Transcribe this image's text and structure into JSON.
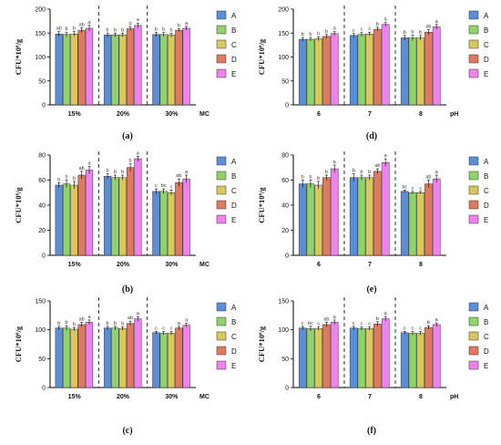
{
  "legend_colors": {
    "A": "#5b8ed8",
    "B": "#8fd46a",
    "C": "#d8c85e",
    "D": "#e07a5e",
    "E": "#ee82ee"
  },
  "chart_data": [
    {
      "type": "bar",
      "panel_label": "(a)",
      "ylabel": "CFU*10^6/g",
      "xlabel": "MC",
      "ylim": [
        0,
        200
      ],
      "yticks": [
        0,
        50,
        100,
        150,
        200
      ],
      "categories": [
        "15%",
        "20%",
        "30%"
      ],
      "series": [
        {
          "name": "A",
          "values": [
            148,
            146,
            147
          ],
          "errors": [
            5,
            4,
            4
          ],
          "sig": [
            "ab",
            "b",
            "b"
          ]
        },
        {
          "name": "B",
          "values": [
            147,
            146,
            147
          ],
          "errors": [
            5,
            4,
            4
          ],
          "sig": [
            "b",
            "b",
            "b"
          ]
        },
        {
          "name": "C",
          "values": [
            148,
            146,
            146
          ],
          "errors": [
            5,
            4,
            4
          ],
          "sig": [
            "b",
            "b",
            "b"
          ]
        },
        {
          "name": "D",
          "values": [
            156,
            159,
            156
          ],
          "errors": [
            5,
            4,
            3
          ],
          "sig": [
            "ab",
            "b",
            "b"
          ]
        },
        {
          "name": "E",
          "values": [
            160,
            166,
            160
          ],
          "errors": [
            6,
            5,
            4
          ],
          "sig": [
            "a",
            "a",
            "a"
          ]
        }
      ]
    },
    {
      "type": "bar",
      "panel_label": "(d)",
      "ylabel": "CFU*10^6/g",
      "xlabel": "pH",
      "ylim": [
        0,
        200
      ],
      "yticks": [
        0,
        50,
        100,
        150,
        200
      ],
      "categories": [
        "6",
        "7",
        "8"
      ],
      "series": [
        {
          "name": "A",
          "values": [
            137,
            145,
            140
          ],
          "errors": [
            4,
            4,
            5
          ],
          "sig": [
            "b",
            "c",
            "b"
          ]
        },
        {
          "name": "B",
          "values": [
            137,
            147,
            140
          ],
          "errors": [
            4,
            4,
            6
          ],
          "sig": [
            "b",
            "c",
            "b"
          ]
        },
        {
          "name": "C",
          "values": [
            138,
            148,
            140
          ],
          "errors": [
            4,
            4,
            5
          ],
          "sig": [
            "b",
            "c",
            "b"
          ]
        },
        {
          "name": "D",
          "values": [
            143,
            158,
            152
          ],
          "errors": [
            4,
            4,
            5
          ],
          "sig": [
            "b",
            "b",
            "ab"
          ]
        },
        {
          "name": "E",
          "values": [
            149,
            168,
            163
          ],
          "errors": [
            4,
            4,
            5
          ],
          "sig": [
            "a",
            "a",
            "a"
          ]
        }
      ]
    },
    {
      "type": "bar",
      "panel_label": "(b)",
      "ylabel": "CFU*10^6/g",
      "xlabel": "MC",
      "ylim": [
        0,
        80
      ],
      "yticks": [
        0,
        20,
        40,
        60,
        80
      ],
      "categories": [
        "15%",
        "20%",
        "30%"
      ],
      "series": [
        {
          "name": "A",
          "values": [
            56,
            63,
            51
          ],
          "errors": [
            2,
            2,
            2
          ],
          "sig": [
            "b",
            "b",
            "c"
          ]
        },
        {
          "name": "B",
          "values": [
            57,
            62,
            51
          ],
          "errors": [
            3,
            2,
            2
          ],
          "sig": [
            "b",
            "b",
            "bc"
          ]
        },
        {
          "name": "C",
          "values": [
            56,
            62,
            50
          ],
          "errors": [
            3,
            2,
            2
          ],
          "sig": [
            "b",
            "b",
            "c"
          ]
        },
        {
          "name": "D",
          "values": [
            64,
            70,
            58
          ],
          "errors": [
            3,
            3,
            3
          ],
          "sig": [
            "ab",
            "b",
            "ab"
          ]
        },
        {
          "name": "E",
          "values": [
            68,
            77,
            61
          ],
          "errors": [
            3,
            2,
            3
          ],
          "sig": [
            "a",
            "a",
            "a"
          ]
        }
      ]
    },
    {
      "type": "bar",
      "panel_label": "(e)",
      "ylabel": "CFU*10^6/g",
      "xlabel": "",
      "ylim": [
        0,
        80
      ],
      "yticks": [
        0,
        20,
        40,
        60,
        80
      ],
      "categories": [
        "6",
        "7",
        "8"
      ],
      "series": [
        {
          "name": "A",
          "values": [
            57,
            62,
            51
          ],
          "errors": [
            3,
            3,
            1
          ],
          "sig": [
            "b",
            "b",
            "bc"
          ]
        },
        {
          "name": "B",
          "values": [
            57,
            62,
            50
          ],
          "errors": [
            3,
            2,
            1
          ],
          "sig": [
            "b",
            "b",
            "c"
          ]
        },
        {
          "name": "C",
          "values": [
            56,
            62,
            50
          ],
          "errors": [
            3,
            2,
            1
          ],
          "sig": [
            "b",
            "b",
            "c"
          ]
        },
        {
          "name": "D",
          "values": [
            62,
            67,
            57
          ],
          "errors": [
            2,
            2,
            3
          ],
          "sig": [
            "b",
            "ab",
            "ab"
          ]
        },
        {
          "name": "E",
          "values": [
            69,
            74,
            61
          ],
          "errors": [
            3,
            3,
            3
          ],
          "sig": [
            "a",
            "a",
            "a"
          ]
        }
      ]
    },
    {
      "type": "bar",
      "panel_label": "(c)",
      "ylabel": "CFU*10^6/g",
      "xlabel": "MC",
      "ylim": [
        0,
        150
      ],
      "yticks": [
        0,
        50,
        100,
        150
      ],
      "categories": [
        "15%",
        "20%",
        "30%"
      ],
      "series": [
        {
          "name": "A",
          "values": [
            103,
            103,
            95
          ],
          "errors": [
            3,
            3,
            2
          ],
          "sig": [
            "b",
            "b",
            "c"
          ]
        },
        {
          "name": "B",
          "values": [
            103,
            103,
            94
          ],
          "errors": [
            4,
            3,
            3
          ],
          "sig": [
            "b",
            "b",
            "c"
          ]
        },
        {
          "name": "C",
          "values": [
            101,
            102,
            94
          ],
          "errors": [
            3,
            3,
            3
          ],
          "sig": [
            "b",
            "b",
            "c"
          ]
        },
        {
          "name": "D",
          "values": [
            109,
            111,
            103
          ],
          "errors": [
            4,
            4,
            3
          ],
          "sig": [
            "ab",
            "ab",
            "a"
          ]
        },
        {
          "name": "E",
          "values": [
            113,
            119,
            108
          ],
          "errors": [
            4,
            4,
            3
          ],
          "sig": [
            "a",
            "a",
            "a"
          ]
        }
      ]
    },
    {
      "type": "bar",
      "panel_label": "(f)",
      "ylabel": "CFU*10^6/g",
      "xlabel": "pH",
      "ylim": [
        0,
        150
      ],
      "yticks": [
        0,
        50,
        100,
        150
      ],
      "categories": [
        "6",
        "7",
        "8"
      ],
      "series": [
        {
          "name": "A",
          "values": [
            103,
            103,
            95
          ],
          "errors": [
            3,
            3,
            2
          ],
          "sig": [
            "c",
            "c",
            "c"
          ]
        },
        {
          "name": "B",
          "values": [
            102,
            102,
            94
          ],
          "errors": [
            4,
            3,
            3
          ],
          "sig": [
            "bc",
            "c",
            "c"
          ]
        },
        {
          "name": "C",
          "values": [
            102,
            102,
            94
          ],
          "errors": [
            3,
            3,
            3
          ],
          "sig": [
            "c",
            "c",
            "c"
          ]
        },
        {
          "name": "D",
          "values": [
            109,
            110,
            104
          ],
          "errors": [
            4,
            4,
            3
          ],
          "sig": [
            "ab",
            "b",
            "b"
          ]
        },
        {
          "name": "E",
          "values": [
            113,
            119,
            109
          ],
          "errors": [
            4,
            4,
            3
          ],
          "sig": [
            "a",
            "a",
            "a"
          ]
        }
      ]
    }
  ]
}
